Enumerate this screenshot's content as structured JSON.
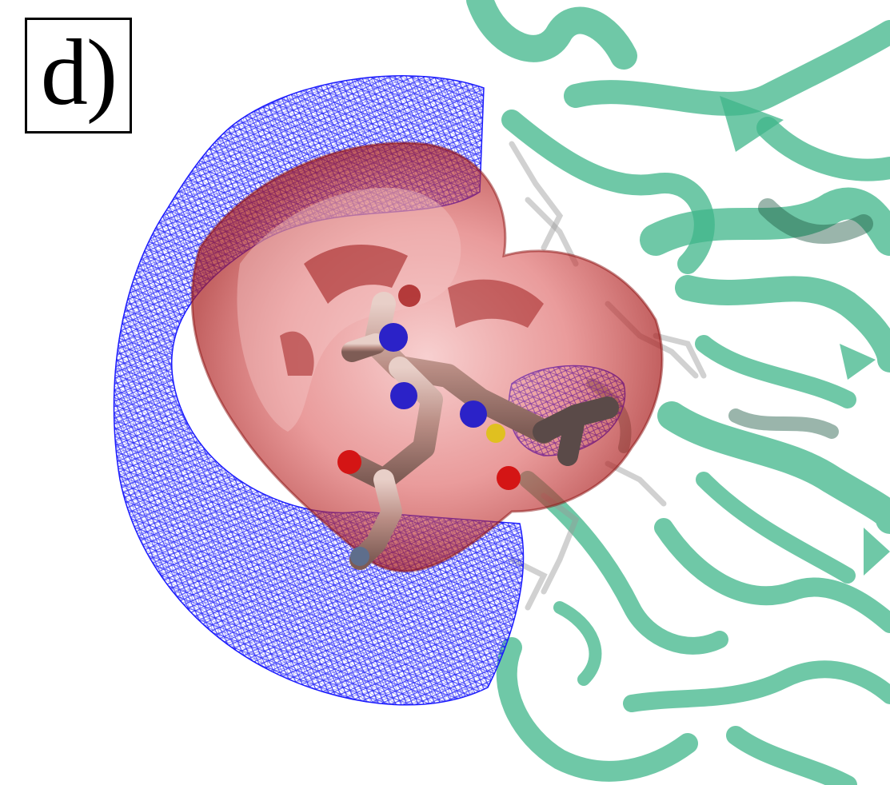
{
  "figure": {
    "panel_label": "d)"
  },
  "colors": {
    "background": "#ffffff",
    "protein_ribbon": "#3fb58a",
    "surface_red": "#d13a3a",
    "mesh_blue": "#1a1aff",
    "ligand_carbon": "#c9a39b",
    "nitrogen": "#2b22c8",
    "oxygen": "#d41515",
    "sulfur": "#e0c020"
  }
}
